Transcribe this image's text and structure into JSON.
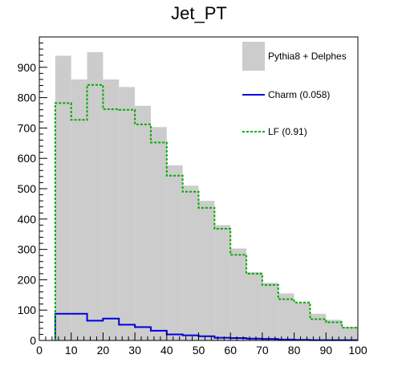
{
  "chart_data": {
    "type": "bar",
    "title": "Jet_PT",
    "xlabel": "",
    "ylabel": "",
    "xlim": [
      0,
      100
    ],
    "ylim": [
      0,
      1000
    ],
    "bin_width": 5,
    "xticks": [
      0,
      10,
      20,
      30,
      40,
      50,
      60,
      70,
      80,
      90,
      100
    ],
    "yticks": [
      0,
      100,
      200,
      300,
      400,
      500,
      600,
      700,
      800,
      900
    ],
    "x": [
      5,
      10,
      15,
      20,
      25,
      30,
      35,
      40,
      45,
      50,
      55,
      60,
      65,
      70,
      75,
      80,
      85,
      90,
      95
    ],
    "series": [
      {
        "name": "Pythia8 + Delphes",
        "style": "filled",
        "color": "#cccccc",
        "values": [
          938,
          860,
          950,
          860,
          835,
          773,
          703,
          577,
          510,
          460,
          380,
          303,
          225,
          190,
          155,
          125,
          88,
          68,
          45
        ]
      },
      {
        "name": "Charm (0.058)",
        "style": "solid",
        "color": "#0000dd",
        "values": [
          88,
          88,
          65,
          72,
          52,
          44,
          32,
          20,
          17,
          14,
          9,
          8,
          6,
          5,
          3,
          2,
          1,
          1,
          1
        ]
      },
      {
        "name": "LF (0.91)",
        "style": "dashed",
        "color": "#00aa00",
        "values": [
          782,
          727,
          842,
          762,
          760,
          712,
          652,
          543,
          490,
          437,
          368,
          282,
          220,
          183,
          136,
          125,
          70,
          60,
          42
        ]
      }
    ],
    "legend_position": "top-right",
    "grid": false
  }
}
